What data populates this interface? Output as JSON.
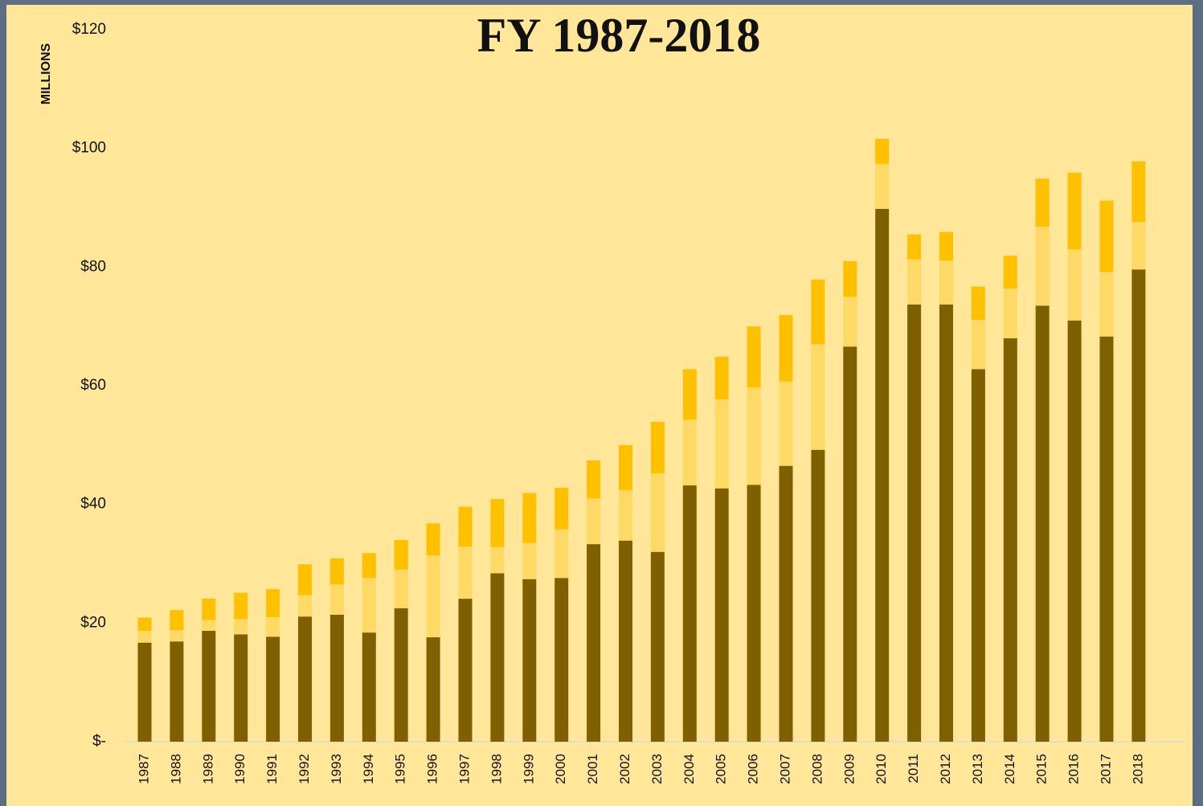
{
  "chart_data": {
    "type": "stacked_bar",
    "title": "FY 1987-2018",
    "y_label": "MILLIONS",
    "categories": [
      "1987",
      "1988",
      "1989",
      "1990",
      "1991",
      "1992",
      "1993",
      "1994",
      "1995",
      "1996",
      "1997",
      "1998",
      "1999",
      "2000",
      "2001",
      "2002",
      "2003",
      "2004",
      "2005",
      "2006",
      "2007",
      "2008",
      "2009",
      "2010",
      "2011",
      "2012",
      "2013",
      "2014",
      "2015",
      "2016",
      "2017",
      "2018"
    ],
    "series": [
      {
        "color": "#7f6000",
        "values": [
          16.7,
          16.9,
          18.7,
          18.1,
          17.7,
          21.1,
          21.4,
          18.4,
          22.5,
          17.6,
          24.1,
          28.4,
          27.4,
          27.6,
          33.3,
          33.9,
          32.0,
          43.2,
          42.7,
          43.3,
          46.5,
          49.2,
          66.6,
          89.8,
          73.7,
          73.7,
          62.8,
          68.0,
          73.5,
          71.0,
          68.3,
          79.6
        ]
      },
      {
        "color": "#ffd966",
        "values": [
          2.0,
          1.9,
          1.8,
          2.6,
          3.3,
          3.6,
          5.1,
          9.2,
          6.5,
          13.8,
          8.8,
          4.4,
          6.1,
          8.2,
          7.7,
          8.5,
          13.2,
          11.1,
          15.0,
          16.4,
          14.2,
          17.8,
          8.4,
          7.6,
          7.6,
          7.4,
          8.3,
          8.4,
          13.3,
          12.0,
          10.9,
          8.0
        ]
      },
      {
        "color": "#ffc000",
        "values": [
          2.2,
          3.4,
          3.6,
          4.4,
          4.7,
          5.2,
          4.4,
          4.2,
          5.0,
          5.4,
          6.7,
          8.1,
          8.4,
          7.0,
          6.4,
          7.6,
          8.7,
          8.5,
          7.2,
          10.3,
          11.2,
          10.9,
          6.0,
          4.2,
          4.2,
          4.8,
          5.6,
          5.5,
          8.1,
          12.9,
          12.0,
          10.2
        ]
      }
    ],
    "ylim": [
      0,
      120
    ],
    "yticks": [
      {
        "value": 0,
        "label": "$-"
      },
      {
        "value": 20,
        "label": "$20"
      },
      {
        "value": 40,
        "label": "$40"
      },
      {
        "value": 60,
        "label": "$60"
      },
      {
        "value": 80,
        "label": "$80"
      },
      {
        "value": 100,
        "label": "$100"
      },
      {
        "value": 120,
        "label": "$120"
      }
    ],
    "grid": false
  }
}
